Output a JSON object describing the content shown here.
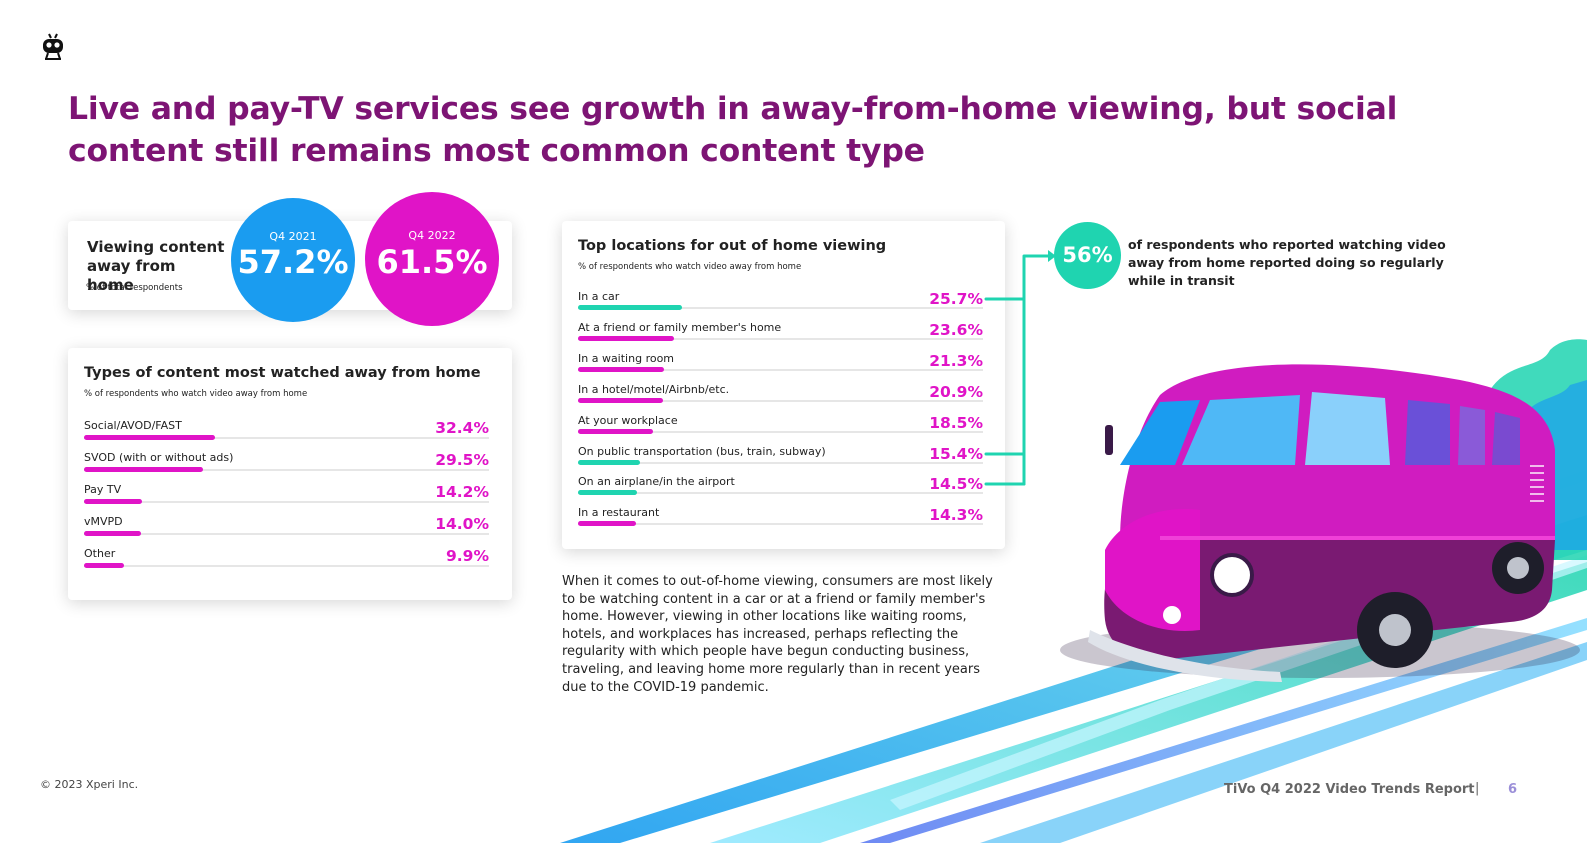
{
  "title": "Live and pay-TV services see growth in away-from-home viewing, but social content still remains most common content type",
  "away_card": {
    "heading": "Viewing content away from home",
    "sub": "% of total respondents",
    "q4_2021_label": "Q4 2021",
    "q4_2021_value": "57.2%",
    "q4_2022_label": "Q4 2022",
    "q4_2022_value": "61.5%"
  },
  "types_card": {
    "heading": "Types of content most watched away from home",
    "sub": "% of respondents who watch video away from home"
  },
  "locations_card": {
    "heading": "Top locations for out of home viewing",
    "sub": "% of respondents who watch video  away from home"
  },
  "stat": {
    "value": "56%",
    "text": "of respondents who reported watching video away from home reported doing so regularly while in transit"
  },
  "body_text": "When it comes to out-of-home viewing, consumers are most likely to be watching content in a car or at a friend or family member's home. However, viewing in other locations like waiting rooms, hotels, and workplaces has increased, perhaps reflecting the regularity with which people have begun conducting business, traveling, and leaving home more regularly than in recent years due to the COVID-19 pandemic.",
  "footer": {
    "copyright": "© 2023 Xperi Inc.",
    "report": "TiVo Q4 2022 Video Trends Report",
    "separator": "|",
    "page": "6"
  },
  "colors": {
    "title": "#7d1474",
    "magenta": "#e014c7",
    "blue": "#1a9cf0",
    "teal": "#1fd4b0",
    "bus": "#7a1a72"
  },
  "chart_data": [
    {
      "type": "bar",
      "categories": [
        "Q4 2021",
        "Q4 2022"
      ],
      "values": [
        57.2,
        61.5
      ]
    },
    {
      "type": "bar",
      "categories": [
        "Social/AVOD/FAST",
        "SVOD (with or without ads)",
        "Pay TV",
        "vMVPD",
        "Other"
      ],
      "values": [
        32.4,
        29.5,
        14.2,
        14.0,
        9.9
      ],
      "value_labels": [
        "32.4%",
        "29.5%",
        "14.2%",
        "14.0%",
        "9.9%"
      ],
      "bar_color": "#e014c7",
      "xlim": [
        0,
        100
      ]
    },
    {
      "type": "bar",
      "categories": [
        "In a car",
        "At a friend or family member's home",
        "In a waiting room",
        "In a hotel/motel/Airbnb/etc.",
        "At your workplace",
        "On public transportation (bus, train, subway)",
        "On an airplane/in the airport",
        "In a restaurant"
      ],
      "values": [
        25.7,
        23.6,
        21.3,
        20.9,
        18.5,
        15.4,
        14.5,
        14.3
      ],
      "value_labels": [
        "25.7%",
        "23.6%",
        "21.3%",
        "20.9%",
        "18.5%",
        "15.4%",
        "14.5%",
        "14.3%"
      ],
      "highlight": [
        true,
        false,
        false,
        false,
        false,
        true,
        true,
        false
      ],
      "highlight_color": "#1fd4b0",
      "bar_color": "#e014c7",
      "xlim": [
        0,
        100
      ]
    }
  ]
}
